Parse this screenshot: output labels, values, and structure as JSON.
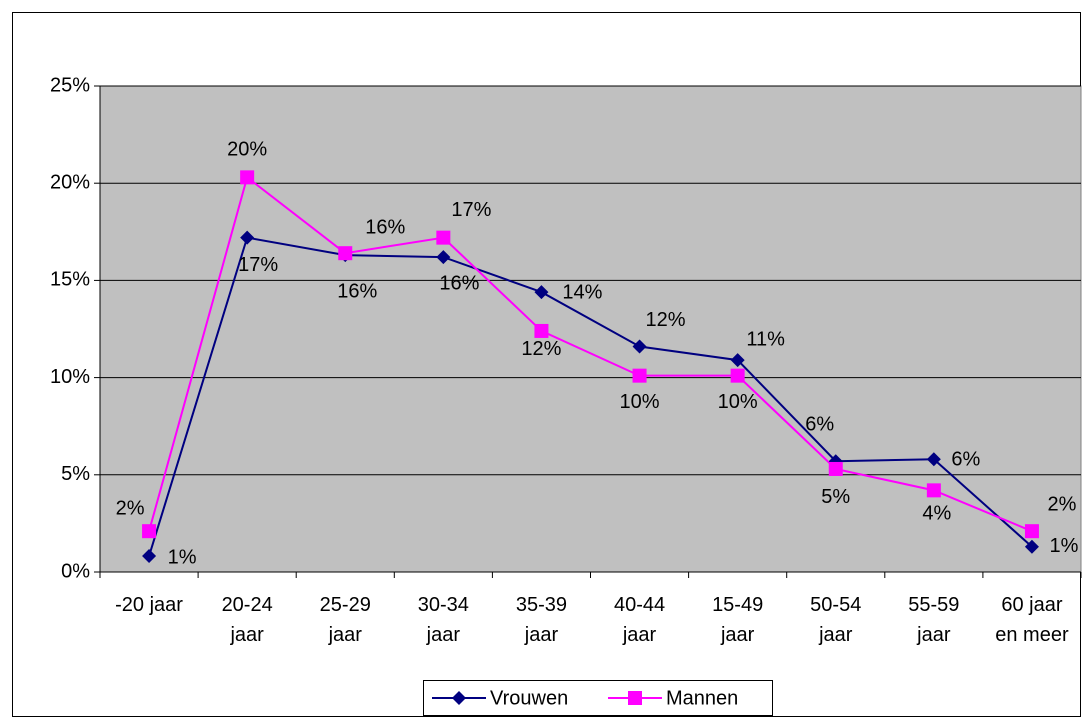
{
  "chart_data": {
    "type": "line",
    "categories": [
      "-20 jaar",
      "20-24 jaar",
      "25-29 jaar",
      "30-34 jaar",
      "35-39 jaar",
      "40-44 jaar",
      "15-49 jaar",
      "50-54 jaar",
      "55-59 jaar",
      "60 jaar en meer"
    ],
    "series": [
      {
        "name": "Vrouwen",
        "color": "#000080",
        "marker": "diamond",
        "values": [
          0.82,
          17.2,
          16.3,
          16.2,
          14.4,
          11.6,
          10.9,
          5.7,
          5.8,
          1.3
        ],
        "value_labels": [
          "1%",
          "17%",
          "16%",
          "16%",
          "14%",
          "12%",
          "11%",
          "6%",
          "6%",
          "1%"
        ]
      },
      {
        "name": "Mannen",
        "color": "#FF00FF",
        "marker": "square",
        "values": [
          2.1,
          20.3,
          16.4,
          17.2,
          12.4,
          10.1,
          10.1,
          5.3,
          4.2,
          2.1
        ],
        "value_labels": [
          "2%",
          "20%",
          "16%",
          "17%",
          "12%",
          "10%",
          "10%",
          "5%",
          "4%",
          "2%"
        ]
      }
    ],
    "ylim": [
      0,
      25
    ],
    "yticks": [
      {
        "value": 0,
        "label": "0%"
      },
      {
        "value": 5,
        "label": "5%"
      },
      {
        "value": 10,
        "label": "10%"
      },
      {
        "value": 15,
        "label": "15%"
      },
      {
        "value": 20,
        "label": "20%"
      },
      {
        "value": 25,
        "label": "25%"
      }
    ],
    "grid": true,
    "plot_background": "#C0C0C0",
    "legend": "bottom"
  }
}
